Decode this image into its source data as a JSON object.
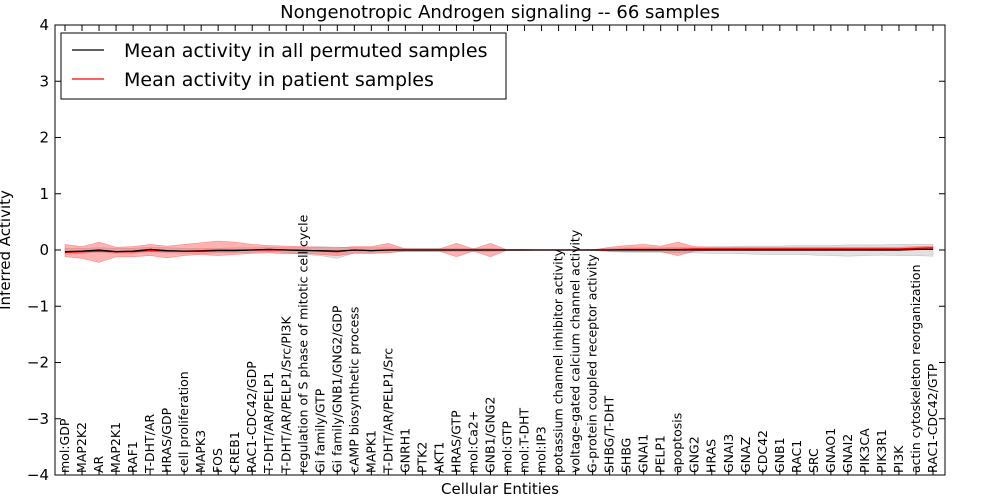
{
  "chart_data": {
    "type": "line",
    "title": "Nongenotropic Androgen signaling -- 66 samples",
    "xlabel": "Cellular Entities",
    "ylabel": "Inferred Activity",
    "ylim": [
      -4,
      4
    ],
    "yticks": [
      -4,
      -3,
      -2,
      -1,
      0,
      1,
      2,
      3,
      4
    ],
    "ytick_labels": [
      "−4",
      "−3",
      "−2",
      "−1",
      "0",
      "1",
      "2",
      "3",
      "4"
    ],
    "legend": {
      "position": "top-left",
      "entries": [
        {
          "label": "Mean activity in all permuted samples",
          "color": "#000000"
        },
        {
          "label": "Mean activity in patient samples",
          "color": "#ff0000"
        }
      ]
    },
    "categories": [
      "mol:GDP",
      "MAP2K2",
      "AR",
      "MAP2K1",
      "RAF1",
      "T-DHT/AR",
      "HRAS/GDP",
      "cell proliferation",
      "MAPK3",
      "FOS",
      "CREB1",
      "RAC1-CDC42/GDP",
      "T-DHT/AR/PELP1",
      "T-DHT/AR/PELP1/Src/PI3K",
      "regulation of S phase of mitotic cell cycle",
      "Gi family/GTP",
      "Gi family/GNB1/GNG2/GDP",
      "cAMP biosynthetic process",
      "MAPK1",
      "T-DHT/AR/PELP1/Src",
      "GNRH1",
      "PTK2",
      "AKT1",
      "HRAS/GTP",
      "mol:Ca2+",
      "GNB1/GNG2",
      "mol:GTP",
      "mol:T-DHT",
      "mol:IP3",
      "potassium channel inhibitor activity",
      "voltage-gated calcium channel activity",
      "G-protein coupled receptor activity",
      "SHBG/T-DHT",
      "SHBG",
      "GNAI1",
      "PELP1",
      "apoptosis",
      "GNG2",
      "HRAS",
      "GNAI3",
      "GNAZ",
      "CDC42",
      "GNB1",
      "RAC1",
      "SRC",
      "GNAO1",
      "GNAI2",
      "PIK3CA",
      "PIK3R1",
      "PI3K",
      "actin cytoskeleton reorganization",
      "RAC1-CDC42/GTP"
    ],
    "series": [
      {
        "name": "Mean activity in all permuted samples",
        "color": "#000000",
        "values": [
          -0.03,
          -0.02,
          0.0,
          -0.03,
          -0.02,
          0.01,
          -0.01,
          -0.02,
          -0.02,
          -0.01,
          -0.01,
          0.0,
          0.01,
          0.0,
          -0.01,
          -0.01,
          -0.02,
          0.0,
          -0.01,
          0.0,
          0.0,
          0.0,
          0.0,
          0.0,
          0.0,
          0.0,
          0.0,
          0.0,
          0.0,
          0.0,
          0.0,
          0.0,
          0.0,
          0.0,
          0.0,
          0.0,
          0.0,
          0.0,
          0.0,
          0.0,
          0.0,
          0.0,
          0.0,
          0.0,
          0.0,
          0.0,
          0.0,
          0.0,
          0.0,
          0.0,
          0.01,
          0.01
        ],
        "band_low": [
          -0.08,
          -0.06,
          -0.04,
          -0.06,
          -0.06,
          -0.03,
          -0.05,
          -0.06,
          -0.06,
          -0.05,
          -0.05,
          -0.04,
          -0.03,
          -0.04,
          -0.08,
          -0.1,
          -0.15,
          -0.05,
          -0.06,
          -0.04,
          -0.03,
          -0.03,
          -0.03,
          -0.03,
          -0.03,
          -0.03,
          -0.01,
          -0.01,
          0.0,
          0.0,
          0.0,
          -0.01,
          -0.03,
          -0.04,
          -0.04,
          -0.04,
          -0.05,
          -0.05,
          -0.06,
          -0.06,
          -0.07,
          -0.08,
          -0.08,
          -0.08,
          -0.09,
          -0.1,
          -0.11,
          -0.1,
          -0.09,
          -0.1,
          -0.1,
          -0.11
        ],
        "band_high": [
          0.03,
          0.03,
          0.04,
          0.03,
          0.03,
          0.05,
          0.04,
          0.03,
          0.03,
          0.03,
          0.04,
          0.04,
          0.05,
          0.04,
          0.05,
          0.06,
          0.05,
          0.05,
          0.04,
          0.04,
          0.03,
          0.03,
          0.03,
          0.03,
          0.03,
          0.03,
          0.01,
          0.01,
          0.0,
          0.0,
          0.0,
          0.01,
          0.03,
          0.04,
          0.04,
          0.04,
          0.05,
          0.05,
          0.06,
          0.06,
          0.07,
          0.07,
          0.07,
          0.08,
          0.08,
          0.08,
          0.09,
          0.09,
          0.09,
          0.1,
          0.1,
          0.1
        ]
      },
      {
        "name": "Mean activity in patient samples",
        "color": "#ff0000",
        "values": [
          -0.04,
          -0.03,
          -0.02,
          -0.03,
          -0.03,
          -0.01,
          -0.02,
          -0.02,
          -0.01,
          0.0,
          0.0,
          0.0,
          0.0,
          0.0,
          0.0,
          -0.02,
          -0.03,
          0.0,
          -0.01,
          0.0,
          0.0,
          0.0,
          0.0,
          0.0,
          0.0,
          0.0,
          0.0,
          0.0,
          0.0,
          0.0,
          0.0,
          0.0,
          0.0,
          0.01,
          0.01,
          0.01,
          0.01,
          0.02,
          0.02,
          0.02,
          0.02,
          0.02,
          0.02,
          0.02,
          0.02,
          0.02,
          0.02,
          0.02,
          0.02,
          0.02,
          0.03,
          0.04
        ],
        "band_low": [
          -0.12,
          -0.15,
          -0.22,
          -0.12,
          -0.12,
          -0.1,
          -0.14,
          -0.1,
          -0.08,
          -0.1,
          -0.08,
          -0.06,
          -0.05,
          -0.07,
          -0.06,
          -0.08,
          -0.1,
          -0.06,
          -0.06,
          -0.05,
          -0.02,
          -0.02,
          -0.02,
          -0.12,
          -0.02,
          -0.12,
          0.0,
          0.0,
          0.0,
          0.0,
          0.0,
          0.0,
          -0.02,
          -0.03,
          -0.03,
          -0.03,
          -0.1,
          -0.02,
          -0.01,
          -0.01,
          -0.01,
          -0.01,
          -0.01,
          -0.01,
          -0.01,
          -0.01,
          -0.01,
          -0.01,
          -0.01,
          -0.01,
          0.0,
          0.01
        ],
        "band_high": [
          0.1,
          0.06,
          0.14,
          0.05,
          0.06,
          0.1,
          0.07,
          0.1,
          0.13,
          0.16,
          0.14,
          0.1,
          0.08,
          0.07,
          0.06,
          0.05,
          0.04,
          0.06,
          0.06,
          0.12,
          0.02,
          0.02,
          0.02,
          0.12,
          0.02,
          0.12,
          0.0,
          0.0,
          0.0,
          0.0,
          0.0,
          0.0,
          0.05,
          0.08,
          0.1,
          0.07,
          0.14,
          0.06,
          0.05,
          0.05,
          0.05,
          0.05,
          0.05,
          0.05,
          0.05,
          0.05,
          0.05,
          0.05,
          0.05,
          0.05,
          0.06,
          0.07
        ]
      }
    ]
  }
}
